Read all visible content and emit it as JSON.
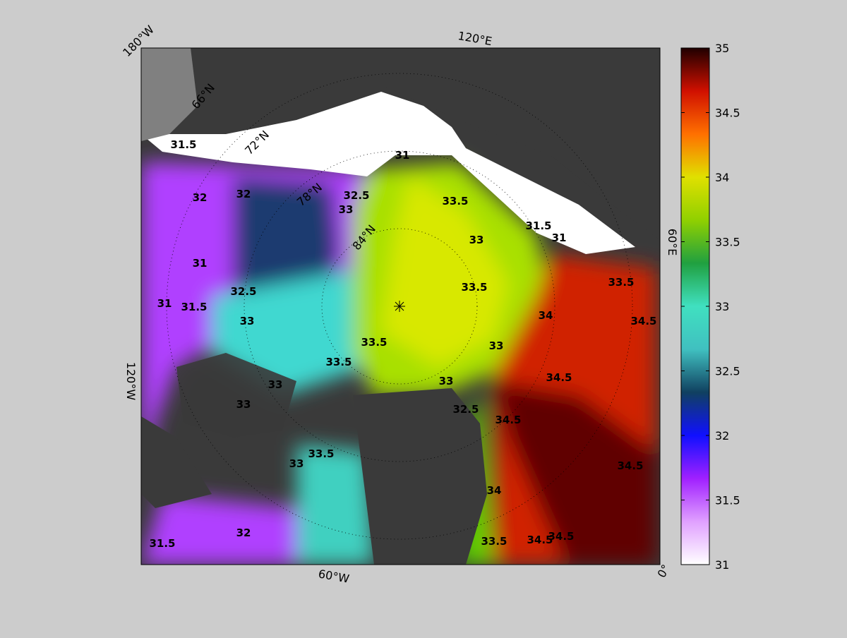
{
  "map": {
    "lon_labels": [
      "180°W",
      "120°E",
      "60°E",
      "0°",
      "60°W",
      "120°W"
    ],
    "lat_labels": [
      "66°N",
      "72°N",
      "78°N",
      "84°N"
    ],
    "contour_labels": [
      "31.5",
      "32",
      "32",
      "31",
      "31",
      "31.5",
      "32.5",
      "33",
      "33",
      "32.5",
      "31",
      "33.5",
      "33",
      "33.5",
      "34",
      "34.5",
      "33.5",
      "33.5",
      "33",
      "33",
      "33",
      "33",
      "32.5",
      "34.5",
      "34.5",
      "34.5",
      "33.5",
      "33",
      "34",
      "33.5",
      "34.5",
      "34.5",
      "31.5",
      "32",
      "33.5",
      "31.5",
      "31"
    ]
  },
  "colorbar": {
    "lim": [
      31,
      35
    ],
    "ticks": [
      31,
      31.5,
      32,
      32.5,
      33,
      33.5,
      34,
      34.5,
      35
    ],
    "colors": [
      "#ffffff",
      "#e0a0ff",
      "#a020ff",
      "#1010ff",
      "#104060",
      "#40c0c0",
      "#40e0c0",
      "#20a040",
      "#90d000",
      "#e0e000",
      "#ff7000",
      "#d01000",
      "#200000"
    ]
  }
}
